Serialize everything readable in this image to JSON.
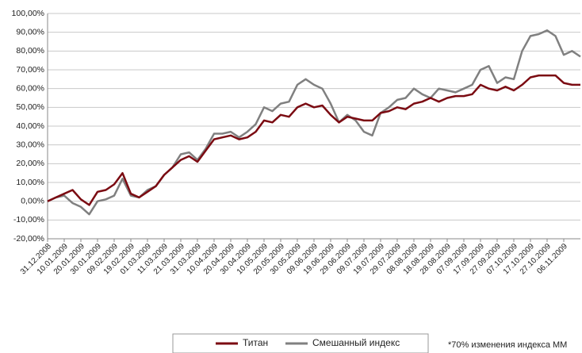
{
  "chart_data": {
    "type": "line",
    "categories": [
      "31.12.2008",
      null,
      "10.01.2009",
      null,
      "20.01.2009",
      null,
      "30.01.2009",
      null,
      "09.02.2009",
      null,
      "19.02.2009",
      null,
      "01.03.2009",
      null,
      "11.03.2009",
      null,
      "21.03.2009",
      null,
      "31.03.2009",
      null,
      "10.04.2009",
      null,
      "20.04.2009",
      null,
      "30.04.2009",
      null,
      "10.05.2009",
      null,
      "20.05.2009",
      null,
      "30.05.2009",
      null,
      "09.06.2009",
      null,
      "19.06.2009",
      null,
      "29.06.2009",
      null,
      "09.07.2009",
      null,
      "19.07.2009",
      null,
      "29.07.2009",
      null,
      "08.08.2009",
      null,
      "18.08.2009",
      null,
      "28.08.2009",
      null,
      "07.09.2009",
      null,
      "17.09.2009",
      null,
      "27.09.2009",
      null,
      "07.10.2009",
      null,
      "17.10.2009",
      null,
      "27.10.2009",
      null,
      "06.11.2009",
      null,
      null
    ],
    "series": [
      {
        "name": "Титан",
        "color": "#7b0b12",
        "values": [
          0,
          2,
          4,
          6,
          1,
          -2,
          5,
          6,
          9,
          15,
          4,
          2,
          5,
          8,
          14,
          18,
          22,
          24,
          21,
          27,
          33,
          34,
          35,
          33,
          34,
          37,
          43,
          42,
          46,
          45,
          50,
          52,
          50,
          51,
          46,
          42,
          45,
          44,
          43,
          43,
          47,
          48,
          50,
          49,
          52,
          53,
          55,
          53,
          55,
          56,
          56,
          57,
          62,
          60,
          59,
          61,
          59,
          62,
          66,
          67,
          67,
          67,
          63,
          62,
          62
        ]
      },
      {
        "name": "Смешанный индекс",
        "color": "#808080",
        "values": [
          0,
          2,
          3,
          -1,
          -3,
          -7,
          0,
          1,
          3,
          12,
          3,
          2,
          6,
          8,
          14,
          18,
          25,
          26,
          22,
          28,
          36,
          36,
          37,
          34,
          37,
          41,
          50,
          48,
          52,
          53,
          62,
          65,
          62,
          60,
          52,
          42,
          46,
          43,
          37,
          35,
          47,
          50,
          54,
          55,
          60,
          57,
          55,
          60,
          59,
          58,
          60,
          62,
          70,
          72,
          63,
          66,
          65,
          80,
          88,
          89,
          91,
          88,
          78,
          80,
          77
        ]
      }
    ],
    "ylim": [
      -20,
      100
    ],
    "yticks": [
      {
        "value": -20,
        "label": "-20,00%"
      },
      {
        "value": -10,
        "label": "-10,00%"
      },
      {
        "value": 0,
        "label": "0,00%"
      },
      {
        "value": 10,
        "label": "10,00%"
      },
      {
        "value": 20,
        "label": "20,00%"
      },
      {
        "value": 30,
        "label": "30,00%"
      },
      {
        "value": 40,
        "label": "40,00%"
      },
      {
        "value": 50,
        "label": "50,00%"
      },
      {
        "value": 60,
        "label": "60,00%"
      },
      {
        "value": 70,
        "label": "70,00%"
      },
      {
        "value": 80,
        "label": "80,00%"
      },
      {
        "value": 90,
        "label": "90,00%"
      },
      {
        "value": 100,
        "label": "100,00%"
      }
    ],
    "grid": true,
    "legend": "bottom",
    "annotation": "*70% изменения индекса ММ"
  }
}
